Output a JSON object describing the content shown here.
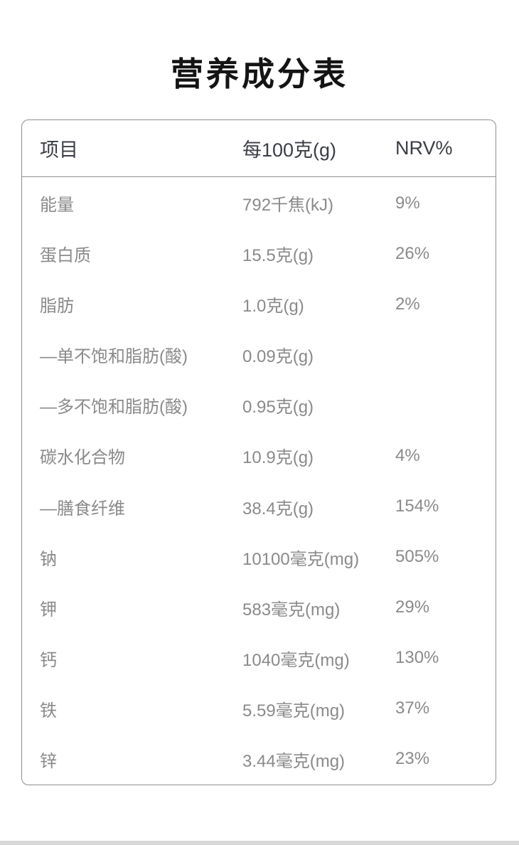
{
  "page": {
    "title": "营养成分表"
  },
  "table": {
    "headers": {
      "item": "项目",
      "per100g": "每100克(g)",
      "nrv": "NRV%"
    },
    "rows": [
      {
        "item": "能量",
        "amount": "792千焦(kJ)",
        "nrv": "9%"
      },
      {
        "item": "蛋白质",
        "amount": "15.5克(g)",
        "nrv": "26%"
      },
      {
        "item": "脂肪",
        "amount": "1.0克(g)",
        "nrv": "2%"
      },
      {
        "item": "—单不饱和脂肪(酸)",
        "amount": "0.09克(g)",
        "nrv": ""
      },
      {
        "item": "—多不饱和脂肪(酸)",
        "amount": "0.95克(g)",
        "nrv": ""
      },
      {
        "item": "碳水化合物",
        "amount": "10.9克(g)",
        "nrv": "4%"
      },
      {
        "item": "—膳食纤维",
        "amount": "38.4克(g)",
        "nrv": "154%"
      },
      {
        "item": "钠",
        "amount": "10100毫克(mg)",
        "nrv": "505%"
      },
      {
        "item": "钾",
        "amount": "583毫克(mg)",
        "nrv": "29%"
      },
      {
        "item": "钙",
        "amount": "1040毫克(mg)",
        "nrv": "130%"
      },
      {
        "item": "铁",
        "amount": "5.59毫克(mg)",
        "nrv": "37%"
      },
      {
        "item": "锌",
        "amount": "3.44毫克(mg)",
        "nrv": "23%"
      }
    ]
  },
  "colors": {
    "title_text": "#141414",
    "header_text": "#3a3e44",
    "body_text": "#8a8a8a",
    "card_border": "#8f8f8f",
    "bottom_strip": "#d8d8d8",
    "background": "#ffffff"
  }
}
